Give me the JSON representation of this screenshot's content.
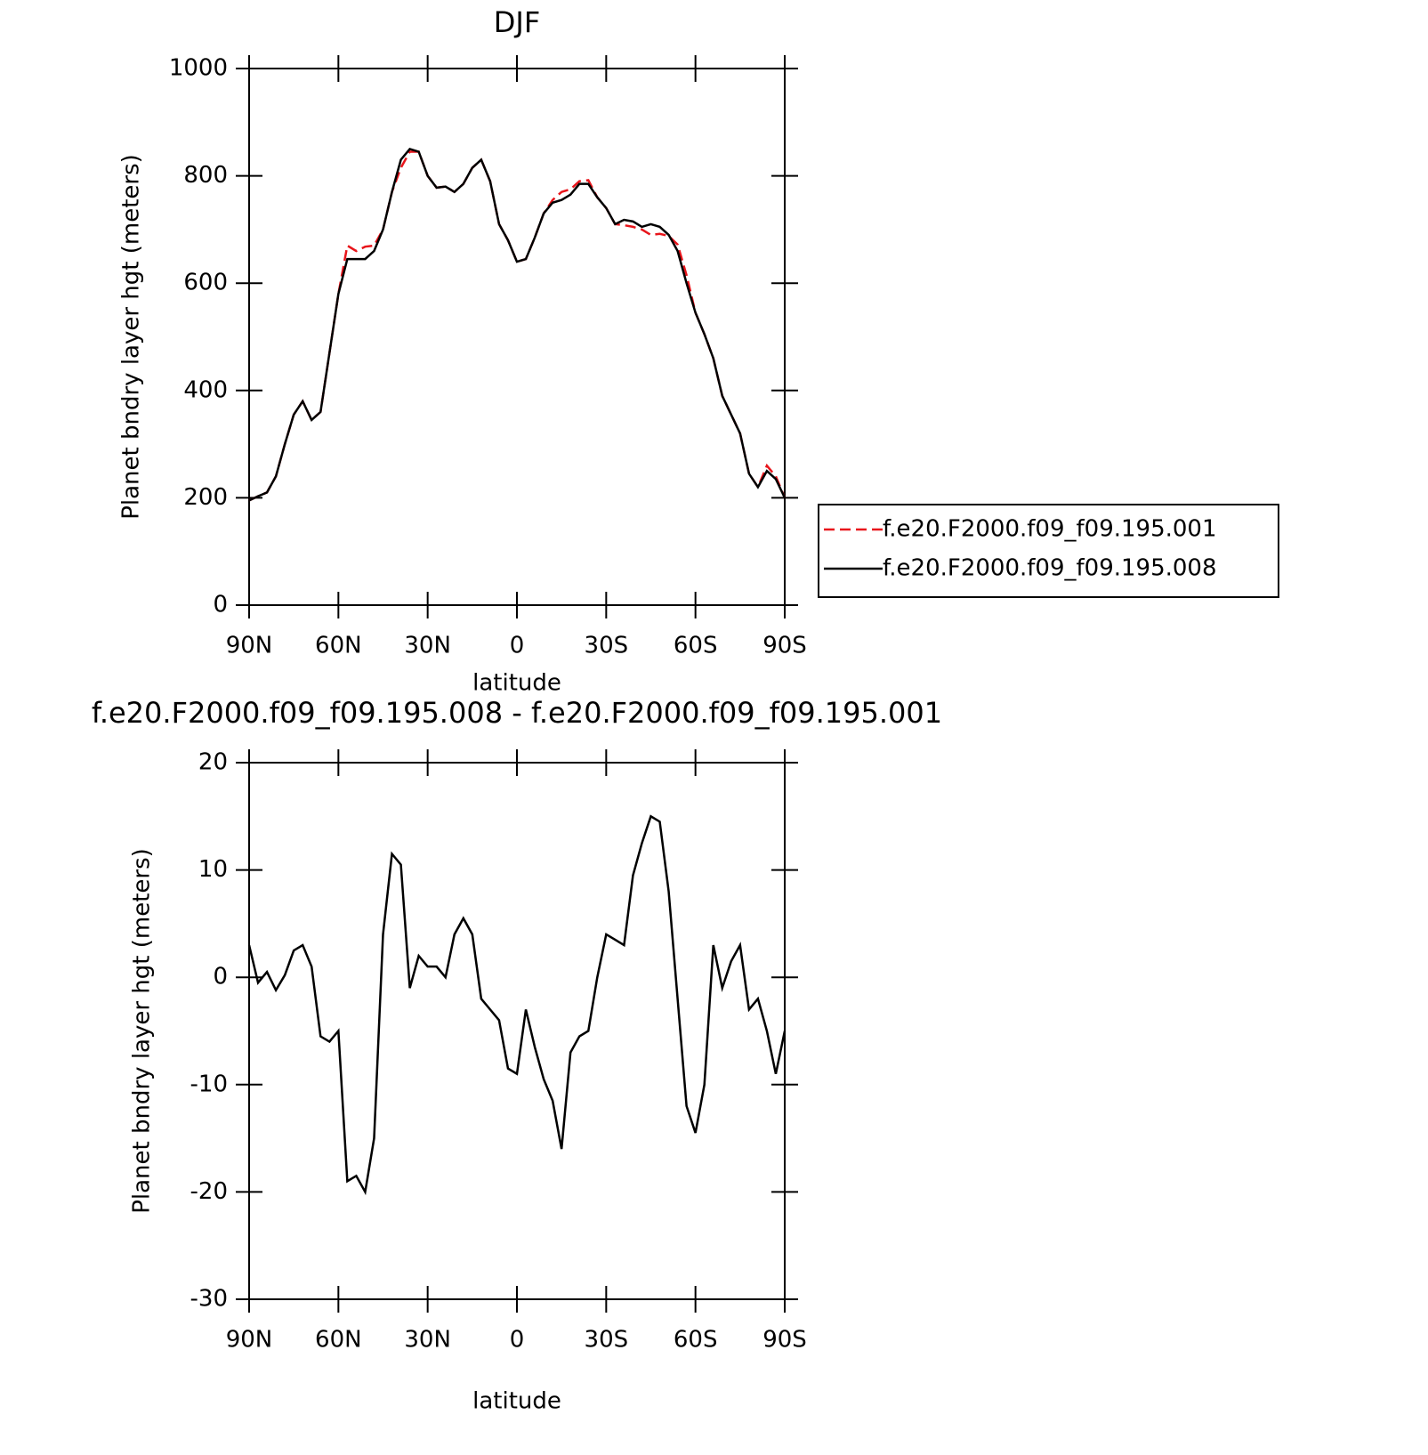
{
  "chart_data": [
    {
      "type": "line",
      "title": "DJF",
      "xlabel": "latitude",
      "ylabel": "Planet bndry layer hgt (meters)",
      "x": [
        90,
        87,
        84,
        81,
        78,
        75,
        72,
        69,
        66,
        63,
        60,
        57,
        54,
        51,
        48,
        45,
        42,
        39,
        36,
        33,
        30,
        27,
        24,
        21,
        18,
        15,
        12,
        9,
        6,
        3,
        0,
        -3,
        -6,
        -9,
        -12,
        -15,
        -18,
        -21,
        -24,
        -27,
        -30,
        -33,
        -36,
        -39,
        -42,
        -45,
        -48,
        -51,
        -54,
        -57,
        -60,
        -63,
        -66,
        -69,
        -72,
        -75,
        -78,
        -81,
        -84,
        -87,
        -90
      ],
      "xlim": [
        90,
        -90
      ],
      "xticks": [
        {
          "value": 90,
          "label": "90N"
        },
        {
          "value": 60,
          "label": "60N"
        },
        {
          "value": 30,
          "label": "30N"
        },
        0,
        {
          "value": -30,
          "label": "30S"
        },
        {
          "value": -60,
          "label": "60S"
        },
        {
          "value": -90,
          "label": "90S"
        }
      ],
      "ylim": [
        0,
        1000
      ],
      "yticks": [
        0,
        200,
        400,
        600,
        800,
        1000
      ],
      "legend": "right",
      "series": [
        {
          "name": "f.e20.F2000.f09_f09.195.001",
          "color": "#e8151b",
          "linestyle": "dashed",
          "values": [
            195,
            203,
            210,
            240,
            300,
            355,
            380,
            345,
            360,
            470,
            580,
            670,
            660,
            668,
            670,
            700,
            770,
            815,
            845,
            845,
            800,
            778,
            780,
            770,
            785,
            815,
            830,
            790,
            710,
            680,
            640,
            645,
            685,
            730,
            755,
            770,
            775,
            790,
            792,
            760,
            740,
            710,
            708,
            705,
            700,
            690,
            692,
            688,
            672,
            615,
            545,
            505,
            460,
            390,
            355,
            320,
            245,
            220,
            260,
            240,
            200
          ]
        },
        {
          "name": "f.e20.F2000.f09_f09.195.008",
          "color": "#000000",
          "linestyle": "solid",
          "values": [
            195,
            203,
            210,
            240,
            300,
            355,
            380,
            345,
            360,
            470,
            580,
            645,
            645,
            645,
            660,
            700,
            770,
            830,
            850,
            845,
            800,
            778,
            780,
            770,
            785,
            815,
            830,
            790,
            710,
            680,
            640,
            645,
            685,
            730,
            750,
            755,
            765,
            785,
            785,
            760,
            740,
            710,
            718,
            715,
            705,
            710,
            705,
            690,
            660,
            600,
            545,
            505,
            460,
            390,
            355,
            320,
            245,
            220,
            250,
            235,
            200
          ]
        }
      ]
    },
    {
      "type": "line",
      "title": "f.e20.F2000.f09_f09.195.008 - f.e20.F2000.f09_f09.195.001",
      "xlabel": "latitude",
      "ylabel": "Planet bndry layer hgt (meters)",
      "x": [
        90,
        87,
        84,
        81,
        78,
        75,
        72,
        69,
        66,
        63,
        60,
        57,
        54,
        51,
        48,
        45,
        42,
        39,
        36,
        33,
        30,
        27,
        24,
        21,
        18,
        15,
        12,
        9,
        6,
        3,
        0,
        -3,
        -6,
        -9,
        -12,
        -15,
        -18,
        -21,
        -24,
        -27,
        -30,
        -33,
        -36,
        -39,
        -42,
        -45,
        -48,
        -51,
        -54,
        -57,
        -60,
        -63,
        -66,
        -69,
        -72,
        -75,
        -78,
        -81,
        -84,
        -87,
        -90
      ],
      "xlim": [
        90,
        -90
      ],
      "xticks": [
        {
          "value": 90,
          "label": "90N"
        },
        {
          "value": 60,
          "label": "60N"
        },
        {
          "value": 30,
          "label": "30N"
        },
        0,
        {
          "value": -30,
          "label": "30S"
        },
        {
          "value": -60,
          "label": "60S"
        },
        {
          "value": -90,
          "label": "90S"
        }
      ],
      "ylim": [
        -30,
        20
      ],
      "yticks": [
        -30,
        -20,
        -10,
        0,
        10,
        20
      ],
      "series": [
        {
          "color": "#000000",
          "linestyle": "solid",
          "values": [
            3,
            -0.5,
            0.5,
            -1.2,
            0.2,
            2.5,
            3,
            1,
            -5.5,
            -6,
            -5,
            -19,
            -18.5,
            -20,
            -15,
            4,
            11.5,
            10.5,
            -1,
            2,
            1,
            1,
            0,
            4,
            5.5,
            4,
            -2,
            -3,
            -4,
            -8.5,
            -9,
            -3,
            -6.5,
            -9.5,
            -11.5,
            -16,
            -7,
            -5.5,
            -5,
            0,
            4,
            3.5,
            3,
            9.5,
            12.5,
            15,
            14.5,
            8,
            -2,
            -12,
            -14.5,
            -10,
            3,
            -1,
            1.5,
            3,
            -3,
            -2,
            -5,
            -9,
            -5
          ]
        }
      ]
    }
  ]
}
